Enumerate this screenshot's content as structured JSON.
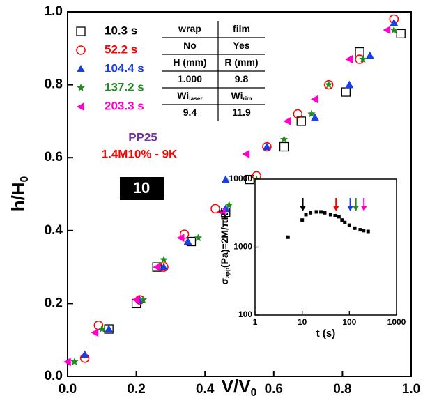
{
  "chart_data": [
    {
      "type": "scatter",
      "xlabel": "V/V",
      "xlabel_sub": "0",
      "ylabel": "h/H",
      "ylabel_sub": "0",
      "xlim": [
        0,
        1
      ],
      "ylim": [
        0,
        1
      ],
      "xticks": [
        {
          "value": 0,
          "label": "0.0"
        },
        {
          "value": 0.2,
          "label": "0.2"
        },
        {
          "value": 0.4,
          "label": "0.4"
        },
        {
          "value": 0.6,
          "label": "0.6"
        },
        {
          "value": 0.8,
          "label": "0.8"
        },
        {
          "value": 1,
          "label": "1.0"
        }
      ],
      "yticks": [
        {
          "value": 0,
          "label": "0.0"
        },
        {
          "value": 0.2,
          "label": "0.2"
        },
        {
          "value": 0.4,
          "label": "0.4"
        },
        {
          "value": 0.6,
          "label": "0.6"
        },
        {
          "value": 0.8,
          "label": "0.8"
        },
        {
          "value": 1,
          "label": "1.0"
        }
      ],
      "series": [
        {
          "name": "10.3 s",
          "color": "#000000",
          "marker": "square",
          "x": [
            0.12,
            0.2,
            0.26,
            0.36,
            0.46,
            0.53,
            0.63,
            0.68,
            0.81,
            0.85,
            0.97
          ],
          "values": [
            0.13,
            0.2,
            0.3,
            0.37,
            0.45,
            0.54,
            0.63,
            0.7,
            0.78,
            0.89,
            0.94
          ]
        },
        {
          "name": "52.2 s",
          "color": "#ff0000",
          "marker": "circle",
          "x": [
            0.05,
            0.09,
            0.21,
            0.28,
            0.34,
            0.43,
            0.55,
            0.58,
            0.67,
            0.76,
            0.85,
            0.95
          ],
          "values": [
            0.05,
            0.14,
            0.21,
            0.3,
            0.39,
            0.46,
            0.55,
            0.63,
            0.72,
            0.8,
            0.87,
            0.98
          ]
        },
        {
          "name": "104.4 s",
          "color": "#1a3fe0",
          "marker": "triangle",
          "x": [
            0.05,
            0.12,
            0.21,
            0.28,
            0.35,
            0.46,
            0.46,
            0.58,
            0.72,
            0.82,
            0.88,
            0.95
          ],
          "values": [
            0.06,
            0.13,
            0.21,
            0.3,
            0.37,
            0.46,
            0.54,
            0.63,
            0.71,
            0.8,
            0.88,
            0.97
          ]
        },
        {
          "name": "137.2 s",
          "color": "#228b22",
          "marker": "star",
          "x": [
            0.02,
            0.1,
            0.22,
            0.28,
            0.38,
            0.47,
            0.55,
            0.63,
            0.71,
            0.76,
            0.86,
            0.95
          ],
          "values": [
            0.04,
            0.13,
            0.21,
            0.32,
            0.38,
            0.47,
            0.54,
            0.65,
            0.72,
            0.8,
            0.87,
            0.95
          ]
        },
        {
          "name": "203.3 s",
          "color": "#ff00cc",
          "marker": "left",
          "x": [
            0.0,
            0.08,
            0.2,
            0.26,
            0.33,
            0.45,
            0.52,
            0.64,
            0.72,
            0.82,
            0.93
          ],
          "values": [
            0.04,
            0.12,
            0.21,
            0.3,
            0.38,
            0.45,
            0.61,
            0.7,
            0.76,
            0.87,
            0.95
          ]
        }
      ],
      "annotations": [
        {
          "text": "PP25",
          "color": "#7030a0"
        },
        {
          "text": "1.4M10% - 9K",
          "color": "#ff0000"
        },
        {
          "text": "10",
          "color": "#000000"
        }
      ],
      "table": {
        "rows": [
          [
            {
              "text": "wrap"
            },
            {
              "text": "film"
            }
          ],
          [
            {
              "text": "No"
            },
            {
              "text": "Yes"
            }
          ],
          [
            {
              "text": "H (mm)"
            },
            {
              "text": "R (mm)"
            }
          ],
          [
            {
              "text": "1.000"
            },
            {
              "text": "9.8"
            }
          ],
          [
            {
              "text": "Wi",
              "sub": "laser"
            },
            {
              "text": "Wi",
              "sub": "rim"
            }
          ],
          [
            {
              "text": "9.4"
            },
            {
              "text": "11.9"
            }
          ]
        ]
      }
    },
    {
      "type": "scatter",
      "log_x": true,
      "log_y": true,
      "color": "#000000",
      "xlabel": "t (s)",
      "ylabel": "σ",
      "ylabel_sub": "app",
      "ylabel_rest": "(Pa)=2M/πR",
      "ylabel_sup": "3",
      "xlim": [
        1,
        1000
      ],
      "ylim": [
        100,
        10000
      ],
      "xticks": [
        1,
        10,
        100,
        1000
      ],
      "yticks": [
        100,
        1000,
        10000
      ],
      "x": [
        5,
        10,
        12,
        15,
        20,
        25,
        30,
        40,
        50,
        60,
        70,
        80,
        100,
        130,
        170,
        200,
        250
      ],
      "values": [
        1400,
        2500,
        3000,
        3200,
        3300,
        3300,
        3200,
        3000,
        2900,
        2800,
        2500,
        2300,
        2100,
        1900,
        1800,
        1750,
        1700
      ],
      "arrows": [
        {
          "x": 10.3,
          "color": "#000000"
        },
        {
          "x": 52.2,
          "color": "#ff0000"
        },
        {
          "x": 104.4,
          "color": "#1a3fe0"
        },
        {
          "x": 137.2,
          "color": "#228b22"
        },
        {
          "x": 203.3,
          "color": "#ff00cc"
        }
      ]
    }
  ]
}
